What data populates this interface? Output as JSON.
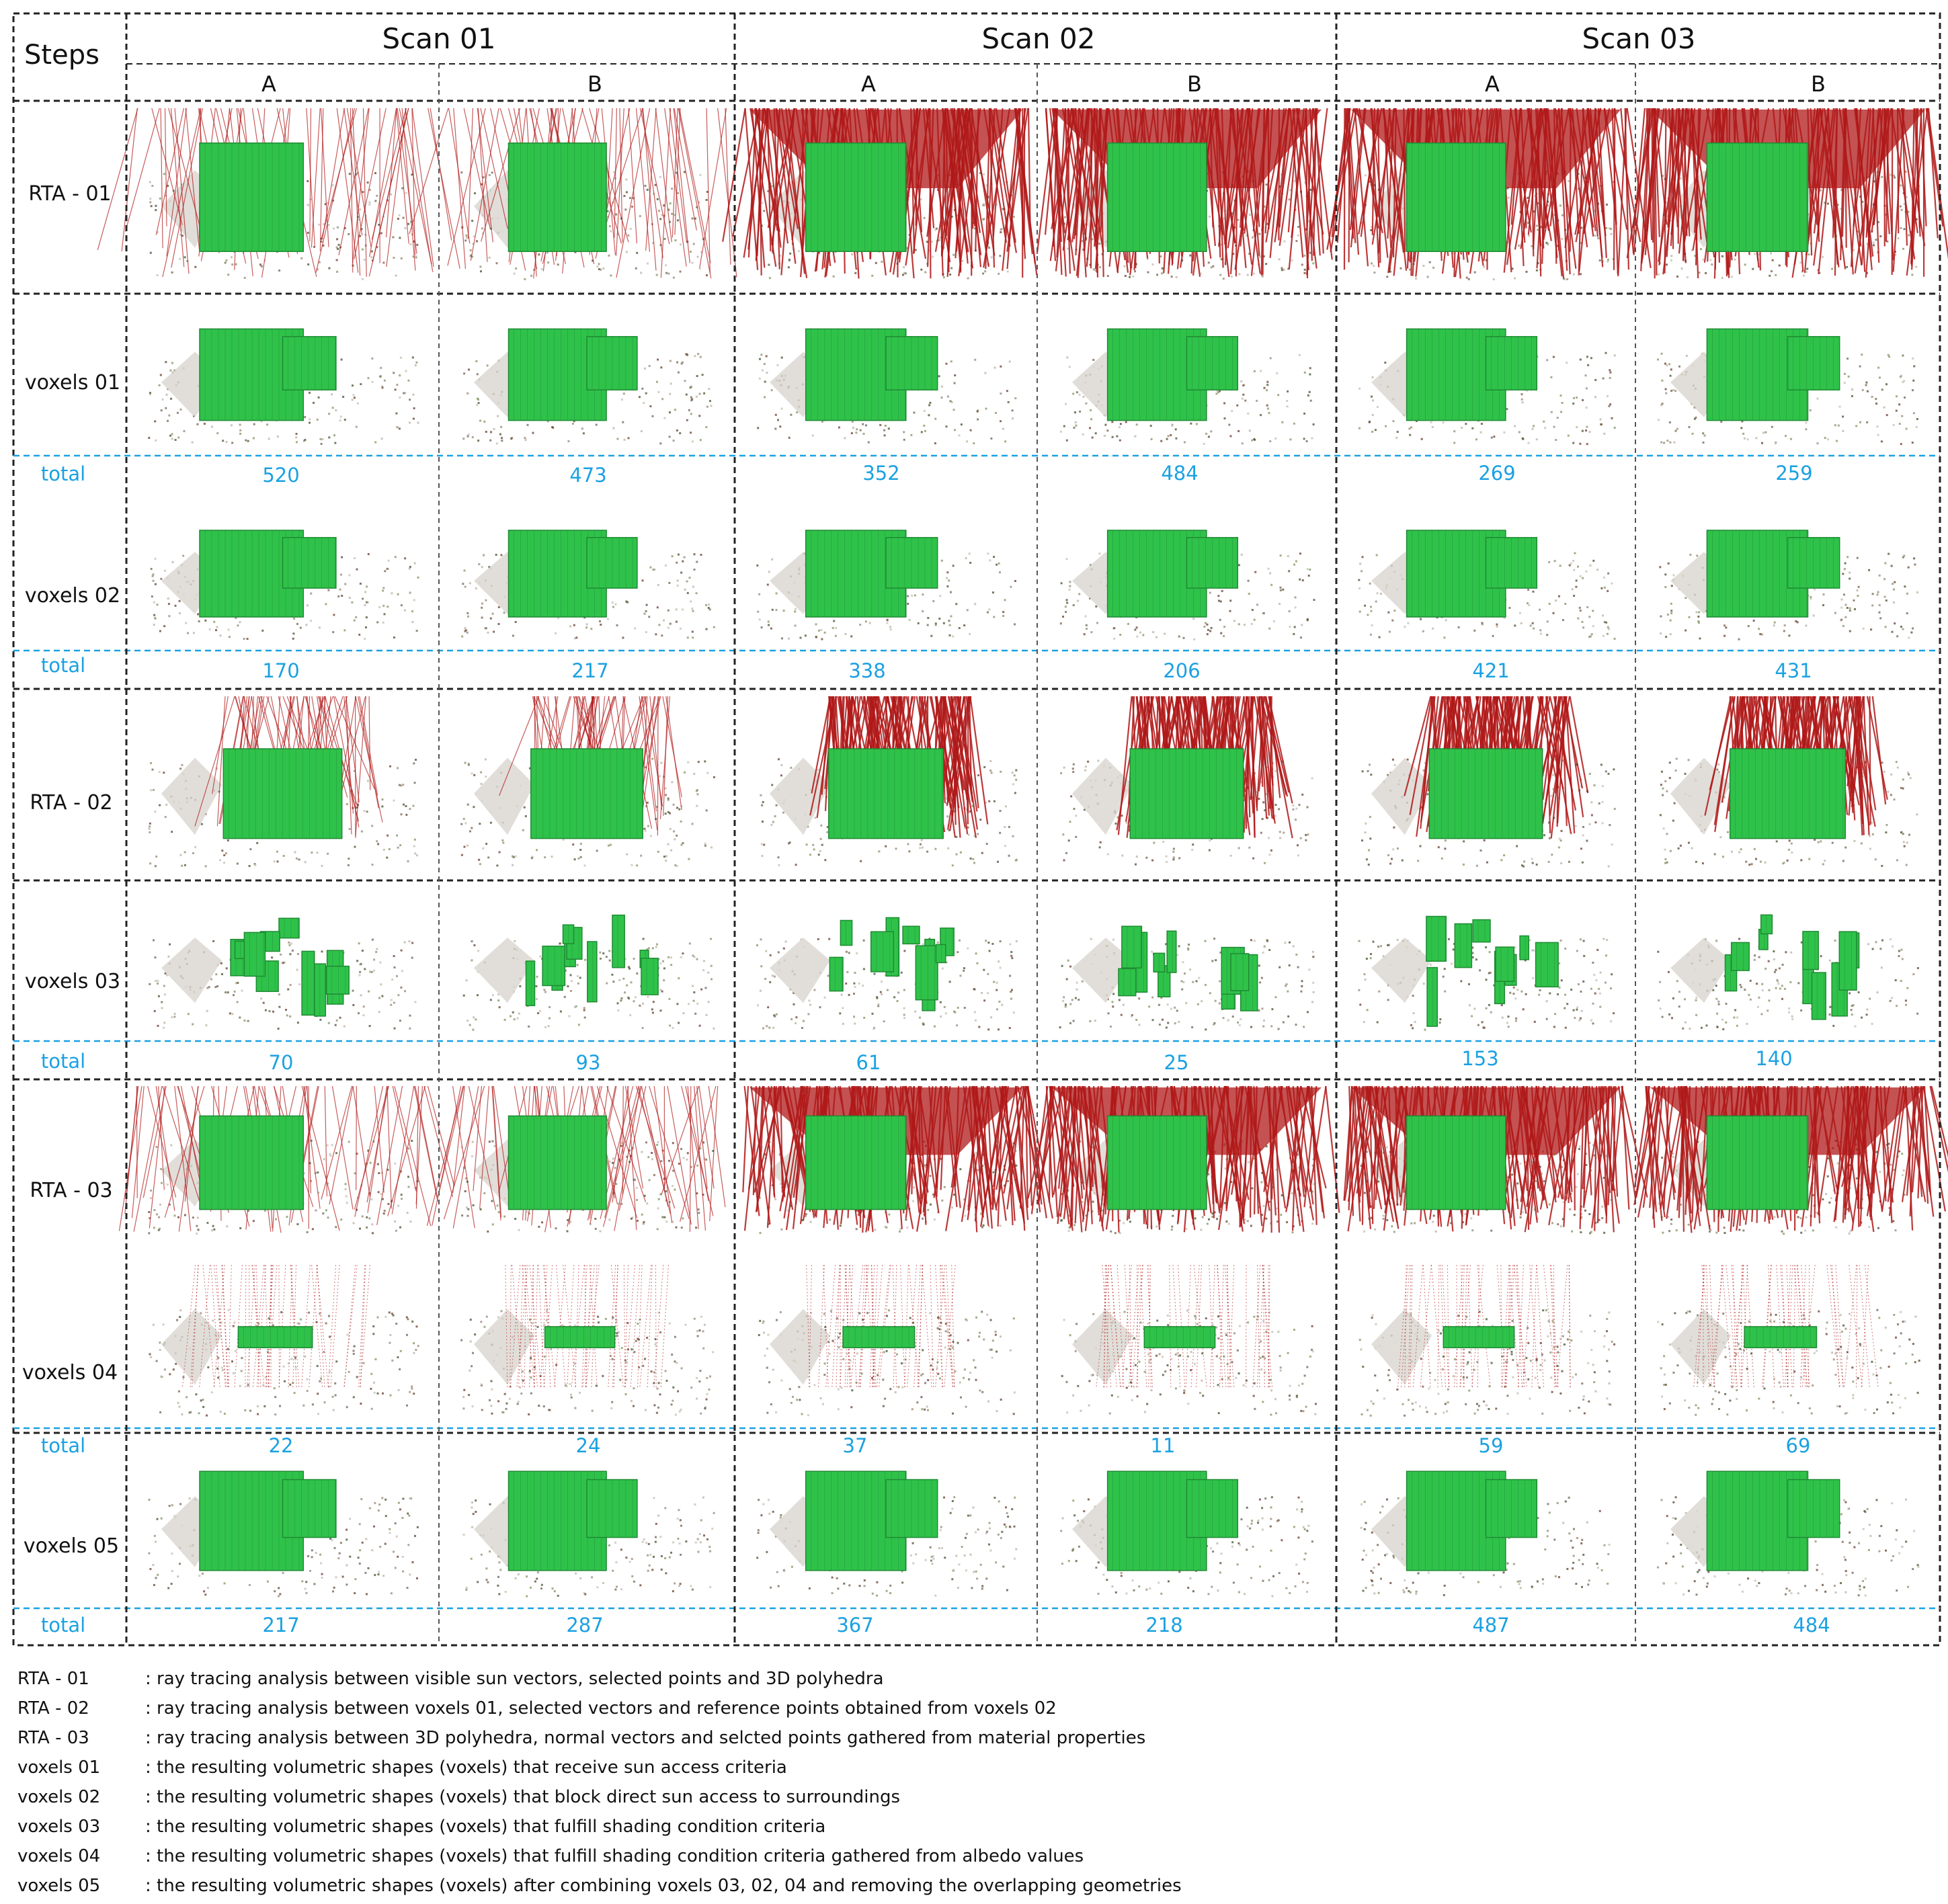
{
  "header": {
    "steps_label": "Steps",
    "scans": [
      {
        "label": "Scan 01",
        "sub": [
          "A",
          "B"
        ]
      },
      {
        "label": "Scan 02",
        "sub": [
          "A",
          "B"
        ]
      },
      {
        "label": "Scan 03",
        "sub": [
          "A",
          "B"
        ]
      }
    ]
  },
  "total_label": "total",
  "steps": [
    {
      "label": "RTA - 01",
      "kind": "rta",
      "total": null
    },
    {
      "label": "voxels 01",
      "kind": "voxel",
      "total": [
        "520",
        "473",
        "352",
        "484",
        "269",
        "259"
      ]
    },
    {
      "label": "voxels 02",
      "kind": "voxel",
      "total": [
        "170",
        "217",
        "338",
        "206",
        "421",
        "431"
      ]
    },
    {
      "label": "RTA - 02",
      "kind": "rta2",
      "total": null
    },
    {
      "label": "voxels 03",
      "kind": "scatter",
      "total": [
        "70",
        "93",
        "61",
        "25",
        "153",
        "140"
      ]
    },
    {
      "label": "RTA -  03",
      "kind": "rta",
      "total": null
    },
    {
      "label": "voxels 04",
      "kind": "sparse",
      "total": [
        "22",
        "24",
        "37",
        "11",
        "59",
        "69"
      ]
    },
    {
      "label": "voxels 05",
      "kind": "voxel",
      "total": [
        "217",
        "287",
        "367",
        "218",
        "487",
        "484"
      ]
    }
  ],
  "legend": [
    {
      "term": "RTA - 01",
      "def": ": ray tracing analysis between visible sun vectors, selected points and 3D polyhedra"
    },
    {
      "term": "RTA - 02",
      "def": ": ray tracing analysis between voxels 01, selected vectors and reference points obtained from voxels 02"
    },
    {
      "term": "RTA - 03",
      "def": ": ray tracing analysis between 3D polyhedra, normal vectors and selcted points gathered from material properties"
    },
    {
      "term": "voxels 01",
      "def": ": the resulting volumetric shapes (voxels) that receive sun access criteria"
    },
    {
      "term": "voxels 02",
      "def": ": the resulting volumetric shapes (voxels) that block direct sun access to surroundings"
    },
    {
      "term": "voxels 03",
      "def": ": the resulting volumetric shapes (voxels) that fulfill shading condition criteria"
    },
    {
      "term": "voxels 04",
      "def": ": the resulting volumetric shapes (voxels) that fulfill shading condition criteria gathered from albedo values"
    },
    {
      "term": "voxels 05",
      "def": ": the resulting volumetric shapes (voxels) after combining voxels 03, 02, 04 and removing the overlapping geometries"
    }
  ],
  "colors": {
    "voxel_green": "#2fc24a",
    "voxel_dark": "#1f8a33",
    "ray_red": "#b01818",
    "total_blue": "#1ba1e2",
    "border": "#222222"
  }
}
